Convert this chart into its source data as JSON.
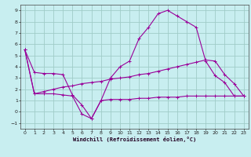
{
  "xlabel": "Windchill (Refroidissement éolien,°C)",
  "bg_color": "#c8eef0",
  "grid_color": "#a0ccc8",
  "line_color": "#990099",
  "xlim": [
    -0.5,
    23.5
  ],
  "ylim": [
    -1.5,
    9.5
  ],
  "xticks": [
    0,
    1,
    2,
    3,
    4,
    5,
    6,
    7,
    8,
    9,
    10,
    11,
    12,
    13,
    14,
    15,
    16,
    17,
    18,
    19,
    20,
    21,
    22,
    23
  ],
  "yticks": [
    -1,
    0,
    1,
    2,
    3,
    4,
    5,
    6,
    7,
    8,
    9
  ],
  "line1_x": [
    0,
    1,
    2,
    3,
    4,
    5,
    6,
    7,
    8,
    9,
    10,
    11,
    12,
    13,
    14,
    15,
    16,
    17,
    18,
    19,
    20,
    21,
    22,
    23
  ],
  "line1_y": [
    5.5,
    3.5,
    3.4,
    3.4,
    3.3,
    1.5,
    0.6,
    -0.6,
    1.0,
    1.1,
    1.1,
    1.1,
    1.2,
    1.2,
    1.3,
    1.3,
    1.3,
    1.4,
    1.4,
    1.4,
    1.4,
    1.4,
    1.4,
    1.4
  ],
  "line2_x": [
    0,
    1,
    2,
    3,
    4,
    5,
    6,
    7,
    8,
    9,
    10,
    11,
    12,
    13,
    14,
    15,
    16,
    17,
    18,
    19,
    20,
    21,
    22,
    23
  ],
  "line2_y": [
    5.5,
    1.6,
    1.6,
    1.6,
    1.5,
    1.4,
    -0.2,
    -0.6,
    1.0,
    3.0,
    4.0,
    4.5,
    6.5,
    7.5,
    8.7,
    9.0,
    8.5,
    8.0,
    7.5,
    4.5,
    3.2,
    2.6,
    1.4,
    1.4
  ],
  "line3_x": [
    0,
    1,
    2,
    3,
    4,
    5,
    6,
    7,
    8,
    9,
    10,
    11,
    12,
    13,
    14,
    15,
    16,
    17,
    18,
    19,
    20,
    21,
    22,
    23
  ],
  "line3_y": [
    5.5,
    1.6,
    1.8,
    2.0,
    2.2,
    2.3,
    2.5,
    2.6,
    2.7,
    2.9,
    3.0,
    3.1,
    3.3,
    3.4,
    3.6,
    3.8,
    4.0,
    4.2,
    4.4,
    4.6,
    4.5,
    3.3,
    2.5,
    1.4
  ]
}
